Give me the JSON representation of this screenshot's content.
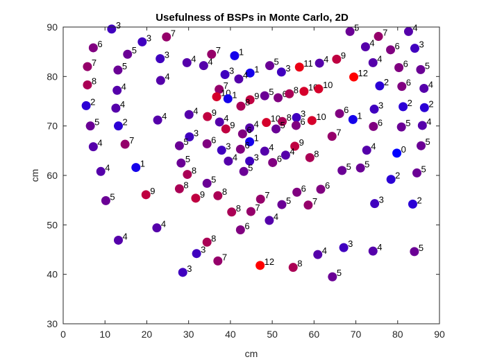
{
  "chart_data": {
    "type": "scatter",
    "title": "Usefulness of BSPs in Monte Carlo, 2D",
    "xlabel": "cm",
    "ylabel": "cm",
    "xlim": [
      0,
      90
    ],
    "ylim": [
      30,
      90
    ],
    "xticks": [
      0,
      10,
      20,
      30,
      40,
      50,
      60,
      70,
      80,
      90
    ],
    "yticks": [
      30,
      40,
      50,
      60,
      70,
      80,
      90
    ],
    "grid": false,
    "legend": "none",
    "color_scale": {
      "low_color": "#0000ff",
      "high_color": "#ff0000",
      "min_value": 0,
      "max_value": 12
    },
    "points": [
      {
        "x": 11.6,
        "y": 89.6,
        "label": "3"
      },
      {
        "x": 24.7,
        "y": 88.0,
        "label": "7"
      },
      {
        "x": 37.3,
        "y": 77.4,
        "label": "7"
      },
      {
        "x": 41.0,
        "y": 84.2,
        "label": "1"
      },
      {
        "x": 35.5,
        "y": 84.5,
        "label": "7"
      },
      {
        "x": 18.9,
        "y": 87.0,
        "label": "3"
      },
      {
        "x": 7.2,
        "y": 85.8,
        "label": "6"
      },
      {
        "x": 15.4,
        "y": 84.5,
        "label": "5"
      },
      {
        "x": 23.2,
        "y": 83.6,
        "label": "3"
      },
      {
        "x": 29.6,
        "y": 82.8,
        "label": "4"
      },
      {
        "x": 33.6,
        "y": 82.2,
        "label": "4"
      },
      {
        "x": 5.8,
        "y": 82.0,
        "label": "7"
      },
      {
        "x": 13.1,
        "y": 81.3,
        "label": "5"
      },
      {
        "x": 38.7,
        "y": 80.4,
        "label": "3"
      },
      {
        "x": 44.7,
        "y": 80.7,
        "label": "1"
      },
      {
        "x": 49.4,
        "y": 82.2,
        "label": "5"
      },
      {
        "x": 52.2,
        "y": 80.9,
        "label": "3"
      },
      {
        "x": 56.5,
        "y": 81.9,
        "label": "11"
      },
      {
        "x": 61.3,
        "y": 82.7,
        "label": "4"
      },
      {
        "x": 65.4,
        "y": 83.5,
        "label": "9"
      },
      {
        "x": 69.5,
        "y": 79.9,
        "label": "12"
      },
      {
        "x": 68.6,
        "y": 89.1,
        "label": "5"
      },
      {
        "x": 75.4,
        "y": 88.1,
        "label": "7"
      },
      {
        "x": 82.6,
        "y": 89.1,
        "label": "4"
      },
      {
        "x": 72.3,
        "y": 86.0,
        "label": "4"
      },
      {
        "x": 78.3,
        "y": 85.4,
        "label": "6"
      },
      {
        "x": 84.1,
        "y": 85.7,
        "label": "3"
      },
      {
        "x": 74.1,
        "y": 82.8,
        "label": "4"
      },
      {
        "x": 80.3,
        "y": 81.8,
        "label": "6"
      },
      {
        "x": 85.5,
        "y": 81.4,
        "label": "5"
      },
      {
        "x": 5.8,
        "y": 78.3,
        "label": "8"
      },
      {
        "x": 12.9,
        "y": 77.2,
        "label": "4"
      },
      {
        "x": 23.3,
        "y": 79.2,
        "label": "4"
      },
      {
        "x": 42.0,
        "y": 79.5,
        "label": "4"
      },
      {
        "x": 36.7,
        "y": 75.9,
        "label": "10"
      },
      {
        "x": 39.4,
        "y": 75.5,
        "label": "1"
      },
      {
        "x": 44.7,
        "y": 75.3,
        "label": "9"
      },
      {
        "x": 48.2,
        "y": 76.1,
        "label": "5"
      },
      {
        "x": 51.4,
        "y": 75.7,
        "label": "6"
      },
      {
        "x": 54.1,
        "y": 76.5,
        "label": "8"
      },
      {
        "x": 57.6,
        "y": 77.0,
        "label": "10"
      },
      {
        "x": 61.1,
        "y": 77.5,
        "label": "10"
      },
      {
        "x": 75.7,
        "y": 78.1,
        "label": "2"
      },
      {
        "x": 81.0,
        "y": 78.0,
        "label": "6"
      },
      {
        "x": 86.3,
        "y": 77.6,
        "label": "4"
      },
      {
        "x": 5.5,
        "y": 74.1,
        "label": "2"
      },
      {
        "x": 12.6,
        "y": 73.6,
        "label": "4"
      },
      {
        "x": 42.5,
        "y": 74.0,
        "label": "8"
      },
      {
        "x": 74.4,
        "y": 73.4,
        "label": "3"
      },
      {
        "x": 81.3,
        "y": 73.9,
        "label": "2"
      },
      {
        "x": 86.4,
        "y": 73.7,
        "label": "2"
      },
      {
        "x": 30.1,
        "y": 72.3,
        "label": "4"
      },
      {
        "x": 34.5,
        "y": 71.9,
        "label": "9"
      },
      {
        "x": 22.6,
        "y": 71.2,
        "label": "4"
      },
      {
        "x": 37.4,
        "y": 70.8,
        "label": "4"
      },
      {
        "x": 44.6,
        "y": 69.6,
        "label": "4"
      },
      {
        "x": 48.6,
        "y": 70.7,
        "label": "10"
      },
      {
        "x": 52.4,
        "y": 70.9,
        "label": "8"
      },
      {
        "x": 55.8,
        "y": 71.7,
        "label": "3"
      },
      {
        "x": 59.5,
        "y": 71.1,
        "label": "10"
      },
      {
        "x": 66.1,
        "y": 72.5,
        "label": "6"
      },
      {
        "x": 69.3,
        "y": 71.3,
        "label": "1"
      },
      {
        "x": 6.5,
        "y": 70.0,
        "label": "5"
      },
      {
        "x": 13.2,
        "y": 70.0,
        "label": "2"
      },
      {
        "x": 38.9,
        "y": 69.4,
        "label": "9"
      },
      {
        "x": 42.9,
        "y": 68.4,
        "label": "6"
      },
      {
        "x": 50.9,
        "y": 69.4,
        "label": "5"
      },
      {
        "x": 55.7,
        "y": 70.1,
        "label": "6"
      },
      {
        "x": 74.2,
        "y": 69.9,
        "label": "6"
      },
      {
        "x": 80.9,
        "y": 69.8,
        "label": "5"
      },
      {
        "x": 85.9,
        "y": 70.1,
        "label": "4"
      },
      {
        "x": 64.3,
        "y": 67.9,
        "label": "7"
      },
      {
        "x": 30.2,
        "y": 67.8,
        "label": "3"
      },
      {
        "x": 44.6,
        "y": 66.8,
        "label": "1"
      },
      {
        "x": 7.2,
        "y": 65.8,
        "label": "4"
      },
      {
        "x": 14.8,
        "y": 66.3,
        "label": "7"
      },
      {
        "x": 27.8,
        "y": 66.0,
        "label": "5"
      },
      {
        "x": 34.4,
        "y": 66.4,
        "label": "6"
      },
      {
        "x": 37.9,
        "y": 65.1,
        "label": "3"
      },
      {
        "x": 42.4,
        "y": 65.3,
        "label": "6"
      },
      {
        "x": 48.2,
        "y": 64.9,
        "label": "4"
      },
      {
        "x": 55.4,
        "y": 65.9,
        "label": "9"
      },
      {
        "x": 53.2,
        "y": 64.1,
        "label": "4"
      },
      {
        "x": 72.6,
        "y": 65.1,
        "label": "4"
      },
      {
        "x": 79.8,
        "y": 64.5,
        "label": "0"
      },
      {
        "x": 85.6,
        "y": 66.0,
        "label": "5"
      },
      {
        "x": 59.0,
        "y": 63.6,
        "label": "8"
      },
      {
        "x": 39.5,
        "y": 62.9,
        "label": "4"
      },
      {
        "x": 44.6,
        "y": 62.9,
        "label": "3"
      },
      {
        "x": 50.1,
        "y": 62.6,
        "label": "6"
      },
      {
        "x": 28.2,
        "y": 62.5,
        "label": "5"
      },
      {
        "x": 17.4,
        "y": 61.6,
        "label": "1"
      },
      {
        "x": 9.0,
        "y": 60.8,
        "label": "4"
      },
      {
        "x": 43.2,
        "y": 60.8,
        "label": "5"
      },
      {
        "x": 29.7,
        "y": 60.2,
        "label": "8"
      },
      {
        "x": 66.7,
        "y": 61.0,
        "label": "5"
      },
      {
        "x": 71.1,
        "y": 61.5,
        "label": "5"
      },
      {
        "x": 84.6,
        "y": 60.5,
        "label": "5"
      },
      {
        "x": 78.4,
        "y": 59.2,
        "label": "2"
      },
      {
        "x": 34.4,
        "y": 58.4,
        "label": "5"
      },
      {
        "x": 27.8,
        "y": 57.3,
        "label": "8"
      },
      {
        "x": 61.6,
        "y": 57.2,
        "label": "6"
      },
      {
        "x": 55.9,
        "y": 56.6,
        "label": "6"
      },
      {
        "x": 19.8,
        "y": 56.1,
        "label": "9"
      },
      {
        "x": 37.0,
        "y": 55.9,
        "label": "8"
      },
      {
        "x": 31.7,
        "y": 55.4,
        "label": "9"
      },
      {
        "x": 47.2,
        "y": 55.2,
        "label": "7"
      },
      {
        "x": 10.2,
        "y": 54.9,
        "label": "5"
      },
      {
        "x": 52.3,
        "y": 54.1,
        "label": "5"
      },
      {
        "x": 58.6,
        "y": 54.0,
        "label": "7"
      },
      {
        "x": 74.5,
        "y": 54.3,
        "label": "3"
      },
      {
        "x": 83.6,
        "y": 54.2,
        "label": "2"
      },
      {
        "x": 40.3,
        "y": 52.6,
        "label": "8"
      },
      {
        "x": 44.9,
        "y": 52.7,
        "label": "7"
      },
      {
        "x": 22.4,
        "y": 49.4,
        "label": "4"
      },
      {
        "x": 49.3,
        "y": 50.9,
        "label": "4"
      },
      {
        "x": 42.4,
        "y": 49.0,
        "label": "6"
      },
      {
        "x": 13.2,
        "y": 46.9,
        "label": "4"
      },
      {
        "x": 34.4,
        "y": 46.5,
        "label": "8"
      },
      {
        "x": 31.9,
        "y": 44.2,
        "label": "3"
      },
      {
        "x": 67.1,
        "y": 45.4,
        "label": "3"
      },
      {
        "x": 74.1,
        "y": 44.7,
        "label": "4"
      },
      {
        "x": 84.0,
        "y": 44.6,
        "label": "5"
      },
      {
        "x": 60.9,
        "y": 44.0,
        "label": "4"
      },
      {
        "x": 37.0,
        "y": 42.7,
        "label": "7"
      },
      {
        "x": 47.1,
        "y": 41.8,
        "label": "12"
      },
      {
        "x": 55.0,
        "y": 41.4,
        "label": "8"
      },
      {
        "x": 28.6,
        "y": 40.4,
        "label": "3"
      },
      {
        "x": 64.4,
        "y": 39.5,
        "label": "5"
      }
    ]
  }
}
